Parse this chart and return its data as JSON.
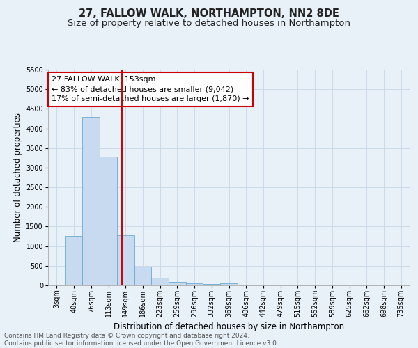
{
  "title": "27, FALLOW WALK, NORTHAMPTON, NN2 8DE",
  "subtitle": "Size of property relative to detached houses in Northampton",
  "xlabel": "Distribution of detached houses by size in Northampton",
  "ylabel": "Number of detached properties",
  "bin_labels": [
    "3sqm",
    "40sqm",
    "76sqm",
    "113sqm",
    "149sqm",
    "186sqm",
    "223sqm",
    "259sqm",
    "296sqm",
    "332sqm",
    "369sqm",
    "406sqm",
    "442sqm",
    "479sqm",
    "515sqm",
    "552sqm",
    "589sqm",
    "625sqm",
    "662sqm",
    "698sqm",
    "735sqm"
  ],
  "bar_values": [
    0,
    1260,
    4300,
    3280,
    1280,
    480,
    190,
    90,
    60,
    30,
    50,
    0,
    0,
    0,
    0,
    0,
    0,
    0,
    0,
    0,
    0
  ],
  "bar_color": "#c8daf0",
  "bar_edge_color": "#6aaad4",
  "grid_color": "#ccd9e8",
  "background_color": "#e8f0f8",
  "vline_x": 3.78,
  "vline_color": "#cc0000",
  "annotation_text": "27 FALLOW WALK: 153sqm\n← 83% of detached houses are smaller (9,042)\n17% of semi-detached houses are larger (1,870) →",
  "annotation_box_color": "#ffffff",
  "annotation_box_edge": "#cc0000",
  "ylim": [
    0,
    5500
  ],
  "yticks": [
    0,
    500,
    1000,
    1500,
    2000,
    2500,
    3000,
    3500,
    4000,
    4500,
    5000,
    5500
  ],
  "footer": "Contains HM Land Registry data © Crown copyright and database right 2024.\nContains public sector information licensed under the Open Government Licence v3.0.",
  "title_fontsize": 10.5,
  "subtitle_fontsize": 9.5,
  "axis_label_fontsize": 8.5,
  "tick_fontsize": 7,
  "annotation_fontsize": 8,
  "footer_fontsize": 6.5
}
